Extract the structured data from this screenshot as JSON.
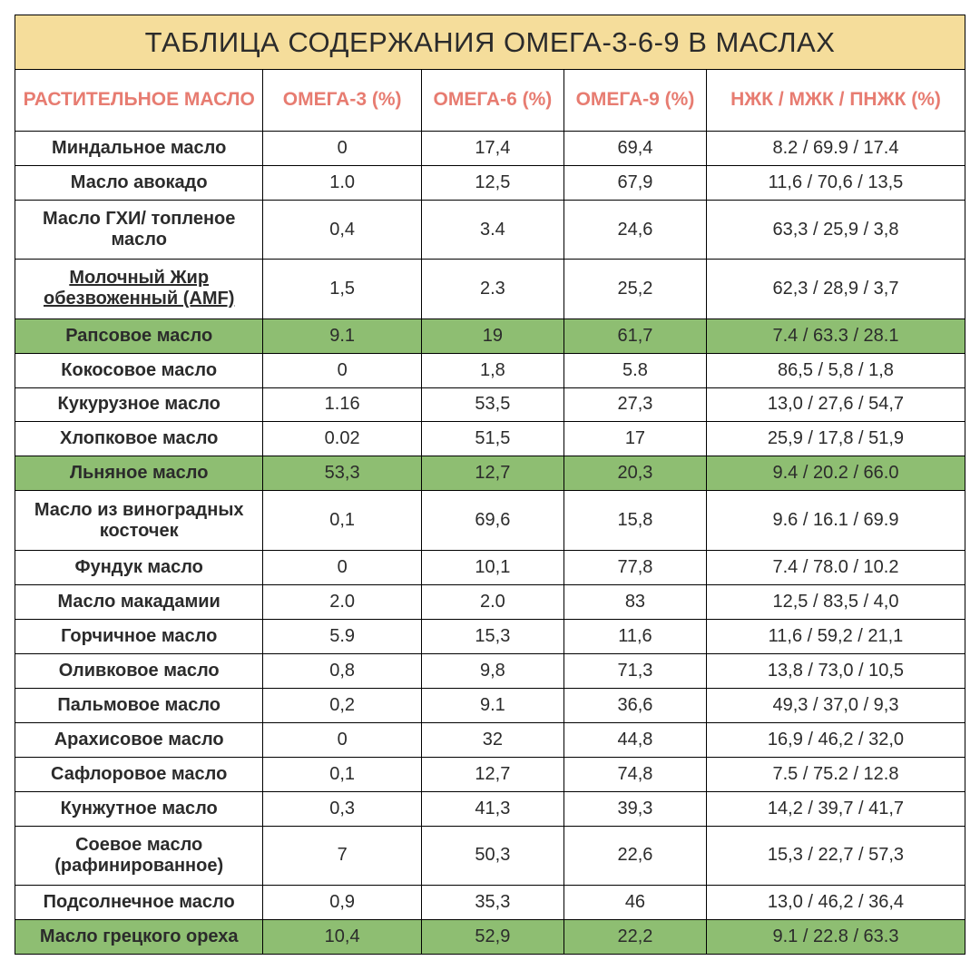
{
  "styles": {
    "title_bg": "#f5dd9b",
    "title_fontsize": 31,
    "header_color": "#e77c71",
    "header_fontsize": 21,
    "cell_fontsize": 20,
    "highlight_bg": "#8ebe72",
    "border_color": "#000000",
    "background": "#ffffff",
    "col_widths_pct": [
      23.5,
      15,
      13.5,
      13.5,
      24.5
    ]
  },
  "title": "ТАБЛИЦА СОДЕРЖАНИЯ ОМЕГА-3-6-9 В МАСЛАХ",
  "columns": [
    "РАСТИТЕЛЬНОЕ МАСЛО",
    "ОМЕГА-3 (%)",
    "ОМЕГА-6 (%)",
    "ОМЕГА-9 (%)",
    "НЖК / МЖК / ПНЖК (%)"
  ],
  "rows": [
    {
      "oil": "Миндальное масло",
      "o3": "0",
      "o6": "17,4",
      "o9": "69,4",
      "fats": "8.2 / 69.9 / 17.4",
      "highlight": false,
      "underline": false
    },
    {
      "oil": "Масло авокадо",
      "o3": "1.0",
      "o6": "12,5",
      "o9": "67,9",
      "fats": "11,6 / 70,6 / 13,5",
      "highlight": false,
      "underline": false
    },
    {
      "oil": "Масло ГХИ/ топленое масло",
      "o3": "0,4",
      "o6": "3.4",
      "o9": "24,6",
      "fats": "63,3 / 25,9 / 3,8",
      "highlight": false,
      "underline": false
    },
    {
      "oil": "Молочный Жир обезвоженный (AMF)",
      "o3": "1,5",
      "o6": "2.3",
      "o9": "25,2",
      "fats": "62,3 / 28,9 / 3,7",
      "highlight": false,
      "underline": true
    },
    {
      "oil": "Рапсовое масло",
      "o3": "9.1",
      "o6": "19",
      "o9": "61,7",
      "fats": "7.4 / 63.3 / 28.1",
      "highlight": true,
      "underline": false
    },
    {
      "oil": "Кокосовое масло",
      "o3": "0",
      "o6": "1,8",
      "o9": "5.8",
      "fats": "86,5 / 5,8 / 1,8",
      "highlight": false,
      "underline": false
    },
    {
      "oil": "Кукурузное масло",
      "o3": "1.16",
      "o6": "53,5",
      "o9": "27,3",
      "fats": "13,0 / 27,6 / 54,7",
      "highlight": false,
      "underline": false
    },
    {
      "oil": "Хлопковое масло",
      "o3": "0.02",
      "o6": "51,5",
      "o9": "17",
      "fats": "25,9 / 17,8 / 51,9",
      "highlight": false,
      "underline": false
    },
    {
      "oil": "Льняное масло",
      "o3": "53,3",
      "o6": "12,7",
      "o9": "20,3",
      "fats": "9.4 / 20.2 / 66.0",
      "highlight": true,
      "underline": false
    },
    {
      "oil": "Масло из виноградных косточек",
      "o3": "0,1",
      "o6": "69,6",
      "o9": "15,8",
      "fats": "9.6 / 16.1 / 69.9",
      "highlight": false,
      "underline": false
    },
    {
      "oil": "Фундук масло",
      "o3": "0",
      "o6": "10,1",
      "o9": "77,8",
      "fats": "7.4 / 78.0 / 10.2",
      "highlight": false,
      "underline": false
    },
    {
      "oil": "Масло макадамии",
      "o3": "2.0",
      "o6": "2.0",
      "o9": "83",
      "fats": "12,5 / 83,5 / 4,0",
      "highlight": false,
      "underline": false
    },
    {
      "oil": "Горчичное масло",
      "o3": "5.9",
      "o6": "15,3",
      "o9": "11,6",
      "fats": "11,6 / 59,2 / 21,1",
      "highlight": false,
      "underline": false
    },
    {
      "oil": "Оливковое масло",
      "o3": "0,8",
      "o6": "9,8",
      "o9": "71,3",
      "fats": "13,8 / 73,0 / 10,5",
      "highlight": false,
      "underline": false
    },
    {
      "oil": "Пальмовое масло",
      "o3": "0,2",
      "o6": "9.1",
      "o9": "36,6",
      "fats": "49,3 / 37,0 / 9,3",
      "highlight": false,
      "underline": false
    },
    {
      "oil": "Арахисовое масло",
      "o3": "0",
      "o6": "32",
      "o9": "44,8",
      "fats": "16,9 / 46,2 / 32,0",
      "highlight": false,
      "underline": false
    },
    {
      "oil": "Сафлоровое масло",
      "o3": "0,1",
      "o6": "12,7",
      "o9": "74,8",
      "fats": "7.5 / 75.2 / 12.8",
      "highlight": false,
      "underline": false
    },
    {
      "oil": "Кунжутное масло",
      "o3": "0,3",
      "o6": "41,3",
      "o9": "39,3",
      "fats": "14,2 / 39,7 / 41,7",
      "highlight": false,
      "underline": false
    },
    {
      "oil": "Соевое масло (рафинированное)",
      "o3": "7",
      "o6": "50,3",
      "o9": "22,6",
      "fats": "15,3 / 22,7 / 57,3",
      "highlight": false,
      "underline": false
    },
    {
      "oil": "Подсолнечное масло",
      "o3": "0,9",
      "o6": "35,3",
      "o9": "46",
      "fats": "13,0 / 46,2 / 36,4",
      "highlight": false,
      "underline": false
    },
    {
      "oil": "Масло грецкого ореха",
      "o3": "10,4",
      "o6": "52,9",
      "o9": "22,2",
      "fats": "9.1 / 22.8 / 63.3",
      "highlight": true,
      "underline": false
    }
  ]
}
